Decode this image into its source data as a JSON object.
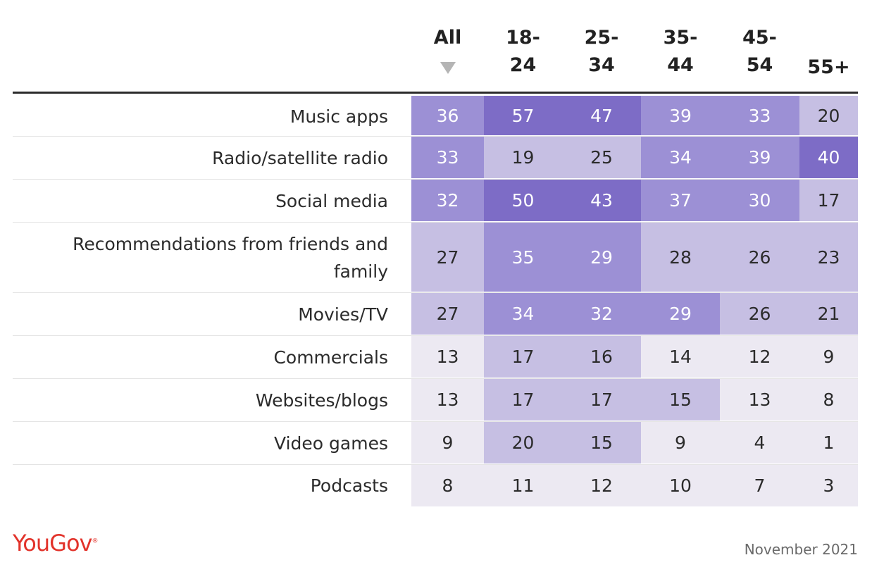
{
  "chart_data": {
    "type": "heatmap",
    "columns": [
      "All",
      "18-\n24",
      "25-\n34",
      "35-\n44",
      "45-\n54",
      "55+"
    ],
    "rows": [
      "Music apps",
      "Radio/satellite radio",
      "Social media",
      "Recommendations from friends and family",
      "Movies/TV",
      "Commercials",
      "Websites/blogs",
      "Video games",
      "Podcasts"
    ],
    "values": [
      [
        36,
        57,
        47,
        39,
        33,
        20
      ],
      [
        33,
        19,
        25,
        34,
        39,
        40
      ],
      [
        32,
        50,
        43,
        37,
        30,
        17
      ],
      [
        27,
        35,
        29,
        28,
        26,
        23
      ],
      [
        27,
        34,
        32,
        29,
        26,
        21
      ],
      [
        13,
        17,
        16,
        14,
        12,
        9
      ],
      [
        13,
        17,
        17,
        15,
        13,
        8
      ],
      [
        9,
        20,
        15,
        9,
        4,
        1
      ],
      [
        8,
        11,
        12,
        10,
        7,
        3
      ]
    ],
    "sorted_by": "All",
    "colors": {
      "level_1": "#ece9f2",
      "level_2": "#c6bfe3",
      "level_3": "#9c90d5",
      "level_4": "#7d6cc6"
    }
  },
  "footer": {
    "brand": "YouGov",
    "date": "November 2021"
  }
}
